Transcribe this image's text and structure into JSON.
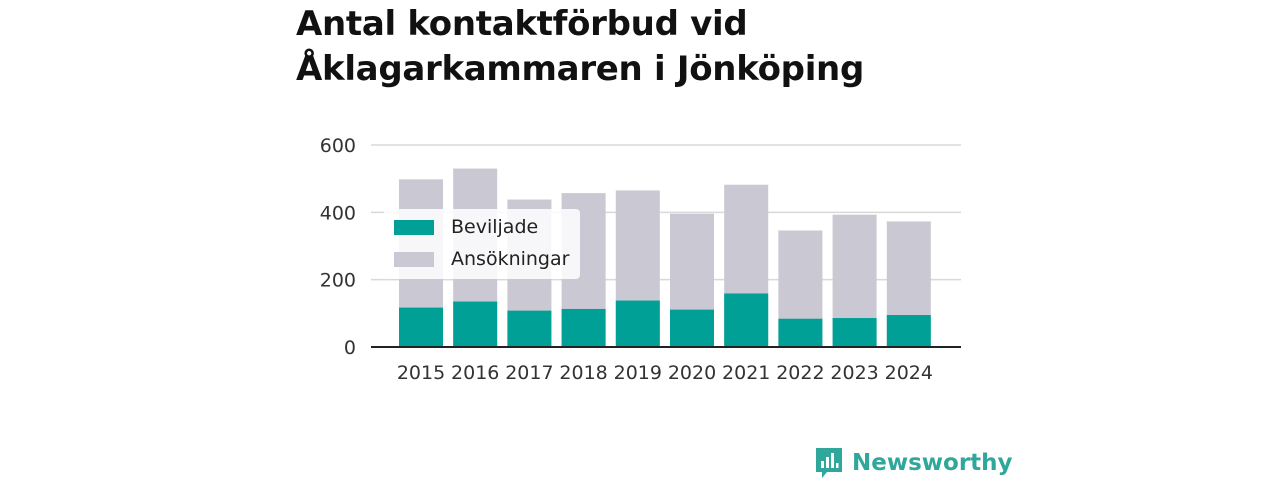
{
  "title_lines": [
    "Antal kontaktförbud vid",
    "Åklagarkammaren i Jönköping"
  ],
  "brand": {
    "name": "Newsworthy",
    "icon": "newsworthy-logo-icon",
    "color": "#2fa79a"
  },
  "chart_data": {
    "type": "bar",
    "stacking": "overlay",
    "categories": [
      "2015",
      "2016",
      "2017",
      "2018",
      "2019",
      "2020",
      "2021",
      "2022",
      "2023",
      "2024"
    ],
    "series": [
      {
        "name": "Beviljade",
        "color": "#00a096",
        "values": [
          117,
          135,
          108,
          113,
          138,
          111,
          159,
          84,
          86,
          95
        ]
      },
      {
        "name": "Ansökningar",
        "color": "#c9c8d3",
        "values": [
          498,
          530,
          438,
          457,
          465,
          396,
          482,
          346,
          393,
          373
        ]
      }
    ],
    "ylim": [
      0,
      600
    ],
    "yticks": [
      "0",
      "200",
      "400",
      "600"
    ],
    "grid": true,
    "legend_position": "top-left"
  }
}
